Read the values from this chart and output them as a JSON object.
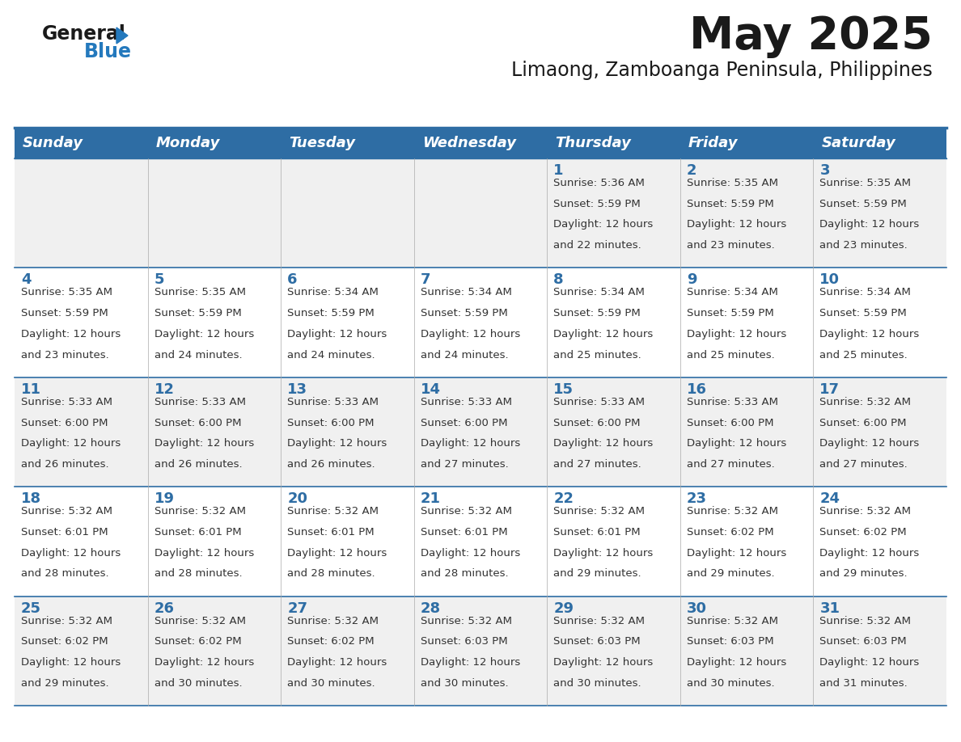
{
  "title": "May 2025",
  "subtitle": "Limaong, Zamboanga Peninsula, Philippines",
  "days_of_week": [
    "Sunday",
    "Monday",
    "Tuesday",
    "Wednesday",
    "Thursday",
    "Friday",
    "Saturday"
  ],
  "header_bg": "#2E6DA4",
  "header_text": "#FFFFFF",
  "row_bg_odd": "#F0F0F0",
  "row_bg_even": "#FFFFFF",
  "cell_border": "#2E6DA4",
  "day_number_color": "#2E6DA4",
  "info_text_color": "#333333",
  "calendar_data": [
    [
      {
        "day": "",
        "sunrise": "",
        "sunset": "",
        "daylight": ""
      },
      {
        "day": "",
        "sunrise": "",
        "sunset": "",
        "daylight": ""
      },
      {
        "day": "",
        "sunrise": "",
        "sunset": "",
        "daylight": ""
      },
      {
        "day": "",
        "sunrise": "",
        "sunset": "",
        "daylight": ""
      },
      {
        "day": "1",
        "sunrise": "5:36 AM",
        "sunset": "5:59 PM",
        "daylight": "12 hours and 22 minutes."
      },
      {
        "day": "2",
        "sunrise": "5:35 AM",
        "sunset": "5:59 PM",
        "daylight": "12 hours and 23 minutes."
      },
      {
        "day": "3",
        "sunrise": "5:35 AM",
        "sunset": "5:59 PM",
        "daylight": "12 hours and 23 minutes."
      }
    ],
    [
      {
        "day": "4",
        "sunrise": "5:35 AM",
        "sunset": "5:59 PM",
        "daylight": "12 hours and 23 minutes."
      },
      {
        "day": "5",
        "sunrise": "5:35 AM",
        "sunset": "5:59 PM",
        "daylight": "12 hours and 24 minutes."
      },
      {
        "day": "6",
        "sunrise": "5:34 AM",
        "sunset": "5:59 PM",
        "daylight": "12 hours and 24 minutes."
      },
      {
        "day": "7",
        "sunrise": "5:34 AM",
        "sunset": "5:59 PM",
        "daylight": "12 hours and 24 minutes."
      },
      {
        "day": "8",
        "sunrise": "5:34 AM",
        "sunset": "5:59 PM",
        "daylight": "12 hours and 25 minutes."
      },
      {
        "day": "9",
        "sunrise": "5:34 AM",
        "sunset": "5:59 PM",
        "daylight": "12 hours and 25 minutes."
      },
      {
        "day": "10",
        "sunrise": "5:34 AM",
        "sunset": "5:59 PM",
        "daylight": "12 hours and 25 minutes."
      }
    ],
    [
      {
        "day": "11",
        "sunrise": "5:33 AM",
        "sunset": "6:00 PM",
        "daylight": "12 hours and 26 minutes."
      },
      {
        "day": "12",
        "sunrise": "5:33 AM",
        "sunset": "6:00 PM",
        "daylight": "12 hours and 26 minutes."
      },
      {
        "day": "13",
        "sunrise": "5:33 AM",
        "sunset": "6:00 PM",
        "daylight": "12 hours and 26 minutes."
      },
      {
        "day": "14",
        "sunrise": "5:33 AM",
        "sunset": "6:00 PM",
        "daylight": "12 hours and 27 minutes."
      },
      {
        "day": "15",
        "sunrise": "5:33 AM",
        "sunset": "6:00 PM",
        "daylight": "12 hours and 27 minutes."
      },
      {
        "day": "16",
        "sunrise": "5:33 AM",
        "sunset": "6:00 PM",
        "daylight": "12 hours and 27 minutes."
      },
      {
        "day": "17",
        "sunrise": "5:32 AM",
        "sunset": "6:00 PM",
        "daylight": "12 hours and 27 minutes."
      }
    ],
    [
      {
        "day": "18",
        "sunrise": "5:32 AM",
        "sunset": "6:01 PM",
        "daylight": "12 hours and 28 minutes."
      },
      {
        "day": "19",
        "sunrise": "5:32 AM",
        "sunset": "6:01 PM",
        "daylight": "12 hours and 28 minutes."
      },
      {
        "day": "20",
        "sunrise": "5:32 AM",
        "sunset": "6:01 PM",
        "daylight": "12 hours and 28 minutes."
      },
      {
        "day": "21",
        "sunrise": "5:32 AM",
        "sunset": "6:01 PM",
        "daylight": "12 hours and 28 minutes."
      },
      {
        "day": "22",
        "sunrise": "5:32 AM",
        "sunset": "6:01 PM",
        "daylight": "12 hours and 29 minutes."
      },
      {
        "day": "23",
        "sunrise": "5:32 AM",
        "sunset": "6:02 PM",
        "daylight": "12 hours and 29 minutes."
      },
      {
        "day": "24",
        "sunrise": "5:32 AM",
        "sunset": "6:02 PM",
        "daylight": "12 hours and 29 minutes."
      }
    ],
    [
      {
        "day": "25",
        "sunrise": "5:32 AM",
        "sunset": "6:02 PM",
        "daylight": "12 hours and 29 minutes."
      },
      {
        "day": "26",
        "sunrise": "5:32 AM",
        "sunset": "6:02 PM",
        "daylight": "12 hours and 30 minutes."
      },
      {
        "day": "27",
        "sunrise": "5:32 AM",
        "sunset": "6:02 PM",
        "daylight": "12 hours and 30 minutes."
      },
      {
        "day": "28",
        "sunrise": "5:32 AM",
        "sunset": "6:03 PM",
        "daylight": "12 hours and 30 minutes."
      },
      {
        "day": "29",
        "sunrise": "5:32 AM",
        "sunset": "6:03 PM",
        "daylight": "12 hours and 30 minutes."
      },
      {
        "day": "30",
        "sunrise": "5:32 AM",
        "sunset": "6:03 PM",
        "daylight": "12 hours and 30 minutes."
      },
      {
        "day": "31",
        "sunrise": "5:32 AM",
        "sunset": "6:03 PM",
        "daylight": "12 hours and 31 minutes."
      }
    ]
  ],
  "logo_text1": "General",
  "logo_text2": "Blue",
  "logo_color1": "#1a1a1a",
  "logo_color2": "#2479BD",
  "logo_triangle_color": "#2479BD",
  "title_fontsize": 40,
  "subtitle_fontsize": 17,
  "header_fontsize": 13,
  "day_num_fontsize": 13,
  "cell_text_fontsize": 9.5
}
